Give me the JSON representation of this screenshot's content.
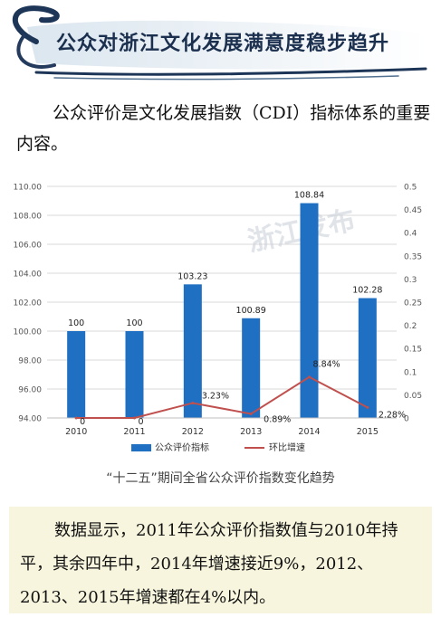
{
  "banner": {
    "title": "公众对浙江文化发展满意度稳步趋升"
  },
  "intro": {
    "text": "公众评价是文化发展指数（CDI）指标体系的重要内容。"
  },
  "watermark": "浙江发布",
  "chart_data": {
    "type": "bar+line",
    "categories": [
      "2010",
      "2011",
      "2012",
      "2013",
      "2014",
      "2015"
    ],
    "series": [
      {
        "name": "公众评价指标",
        "type": "bar",
        "axis": "left",
        "values": [
          100,
          100,
          103.23,
          100.89,
          108.84,
          102.28
        ],
        "labels": [
          "100",
          "100",
          "103.23",
          "100.89",
          "108.84",
          "102.28"
        ],
        "color": "#1f6fc2"
      },
      {
        "name": "环比增速",
        "type": "line",
        "axis": "right",
        "values": [
          0,
          0,
          0.0323,
          0.0089,
          0.0884,
          0.0228
        ],
        "labels": [
          "0",
          "0",
          "3.23%",
          "0.89%",
          "8.84%",
          "2.28%"
        ],
        "color": "#c0504d"
      }
    ],
    "y_left": {
      "min": 94,
      "max": 110,
      "ticks": [
        "94.00",
        "96.00",
        "98.00",
        "100.00",
        "102.00",
        "104.00",
        "106.00",
        "108.00",
        "110.00"
      ]
    },
    "y_right": {
      "min": 0,
      "max": 0.5,
      "ticks": [
        "0",
        "0.05",
        "0.1",
        "0.15",
        "0.2",
        "0.25",
        "0.3",
        "0.35",
        "0.4",
        "0.45",
        "0.5"
      ]
    },
    "legend_position": "bottom",
    "grid": true
  },
  "caption": "“十二五”期间全省公众评价指数变化趋势",
  "summary": {
    "text": "数据显示，2011年公众评价指数值与2010年持平，其余四年中，2014年增速接近9%，2012、2013、2015年增速都在4%以内。"
  }
}
